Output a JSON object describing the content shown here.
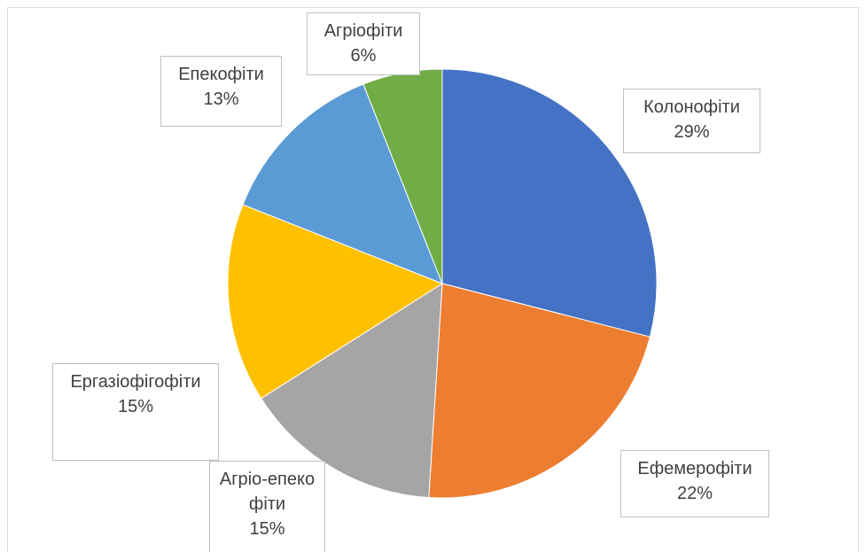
{
  "chart_data": {
    "type": "pie",
    "categories": [
      "Колонофіти",
      "Ефемерофіти",
      "Агріо-епекофіти",
      "Ергазіофігофіти",
      "Епекофіти",
      "Агріофіти"
    ],
    "values": [
      29,
      22,
      15,
      15,
      13,
      6
    ],
    "value_labels": [
      "29%",
      "22%",
      "15%",
      "15%",
      "13%",
      "6%"
    ],
    "colors": [
      "#4472c4",
      "#ed7d31",
      "#a5a5a5",
      "#ffc000",
      "#5b9bd5",
      "#70ad47"
    ]
  }
}
